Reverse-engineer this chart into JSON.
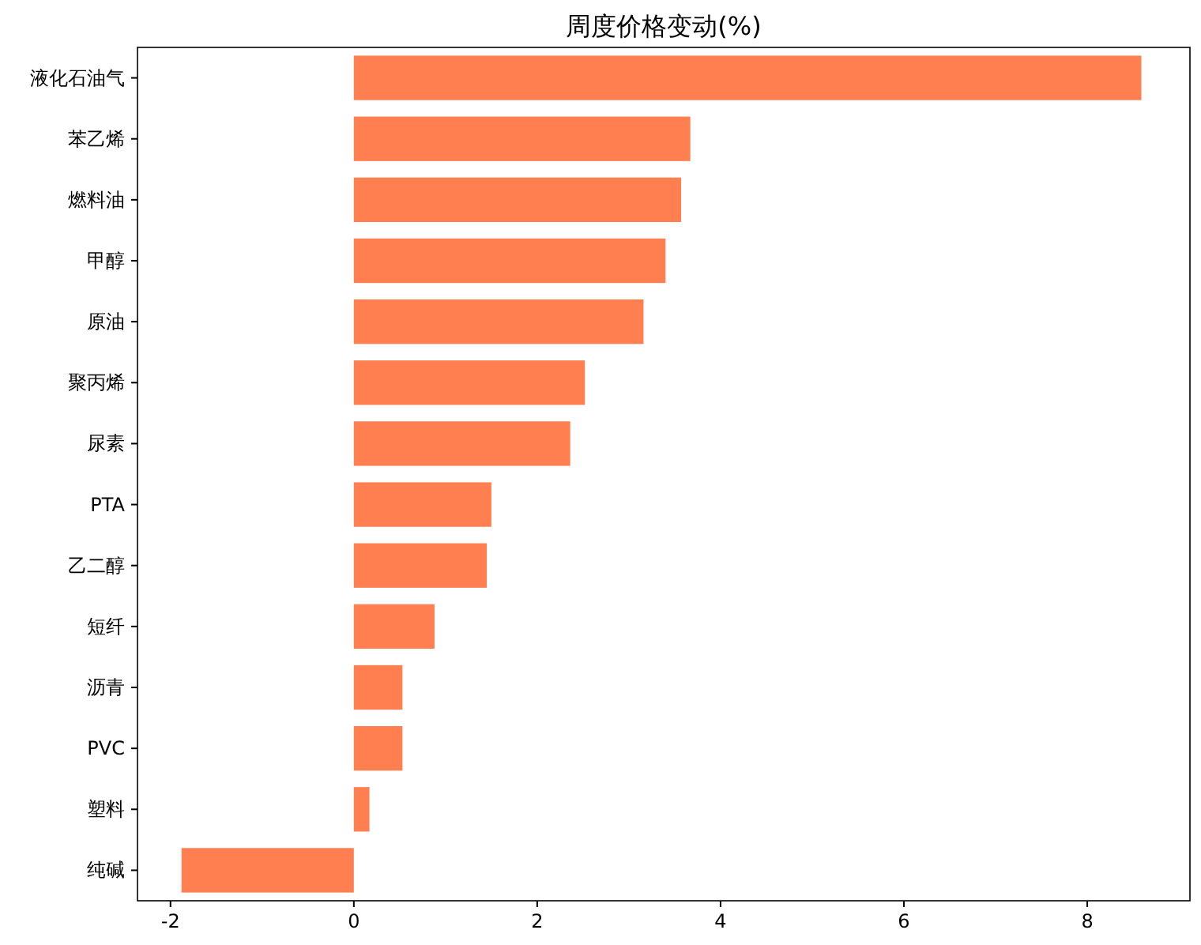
{
  "chart_data": {
    "type": "bar",
    "orientation": "horizontal",
    "title": "周度价格变动(%)",
    "categories": [
      "液化石油气",
      "苯乙烯",
      "燃料油",
      "甲醇",
      "原油",
      "聚丙烯",
      "尿素",
      "PTA",
      "乙二醇",
      "短纤",
      "沥青",
      "PVC",
      "塑料",
      "纯碱"
    ],
    "values": [
      8.59,
      3.67,
      3.57,
      3.4,
      3.16,
      2.52,
      2.36,
      1.5,
      1.45,
      0.88,
      0.53,
      0.53,
      0.17,
      -1.88
    ],
    "color": "#ff7f50",
    "xlim": [
      -2.36,
      9.12
    ],
    "xticks": [
      -2,
      0,
      2,
      4,
      6,
      8
    ],
    "grid": false
  }
}
